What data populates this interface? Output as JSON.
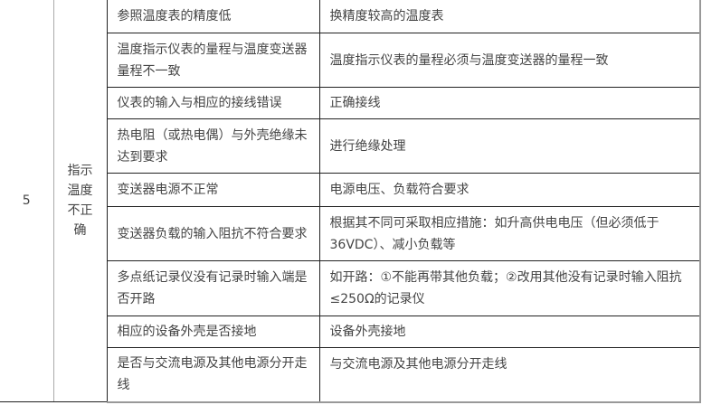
{
  "table": {
    "number": "5",
    "category": "指示温度不正确",
    "category_lines": [
      "指示",
      "温度",
      "不正",
      "确"
    ],
    "rows": [
      {
        "cause": "参照温度表的精度低",
        "solution": "换精度较高的温度表"
      },
      {
        "cause": "温度指示仪表的量程与温度变送器量程不一致",
        "solution": "温度指示仪表的量程必须与温度变送器的量程一致"
      },
      {
        "cause": "仪表的输入与相应的接线错误",
        "solution": "正确接线"
      },
      {
        "cause": "热电阻（或热电偶）与外壳绝缘未达到要求",
        "solution": "进行绝缘处理"
      },
      {
        "cause": "变送器电源不正常",
        "solution": "电源电压、负载符合要求"
      },
      {
        "cause": "变送器负载的输入阻抗不符合要求",
        "solution": "根据其不同可采取相应措施：如升高供电电压（但必须低于36VDC）、减小负载等"
      },
      {
        "cause": "多点纸记录仪没有记录时输入端是否开路",
        "solution": "如开路：①不能再带其他负载；②改用其他没有记录时输入阻抗≤250Ω的记录仪"
      },
      {
        "cause": "相应的设备外壳是否接地",
        "solution": "设备外壳接地"
      },
      {
        "cause": "是否与交流电源及其他电源分开走线",
        "solution": "与交流电源及其他电源分开走线"
      }
    ]
  }
}
